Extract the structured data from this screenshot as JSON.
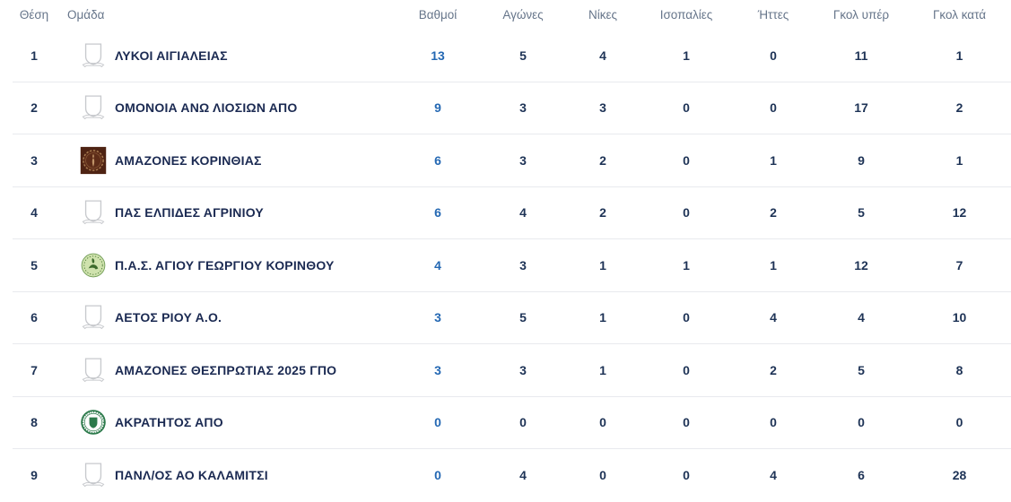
{
  "table": {
    "columns": [
      {
        "key": "position",
        "label": "Θέση"
      },
      {
        "key": "team",
        "label": "Ομάδα"
      },
      {
        "key": "points",
        "label": "Βαθμοί"
      },
      {
        "key": "games",
        "label": "Αγώνες"
      },
      {
        "key": "wins",
        "label": "Νίκες"
      },
      {
        "key": "draws",
        "label": "Ισοπαλίες"
      },
      {
        "key": "losses",
        "label": "Ήττες"
      },
      {
        "key": "goals_for",
        "label": "Γκολ υπέρ"
      },
      {
        "key": "goals_against",
        "label": "Γκολ κατά"
      }
    ],
    "rows": [
      {
        "position": "1",
        "team": "ΛΥΚΟΙ ΑΙΓΙΑΛΕΙΑΣ",
        "logo": "shield-placeholder",
        "points": "13",
        "games": "5",
        "wins": "4",
        "draws": "1",
        "losses": "0",
        "goals_for": "11",
        "goals_against": "1"
      },
      {
        "position": "2",
        "team": "ΟΜΟΝΟΙΑ ΑΝΩ ΛΙΟΣΙΩΝ ΑΠΟ",
        "logo": "shield-placeholder",
        "points": "9",
        "games": "3",
        "wins": "3",
        "draws": "0",
        "losses": "0",
        "goals_for": "17",
        "goals_against": "2"
      },
      {
        "position": "3",
        "team": "ΑΜΑΖΟΝΕΣ ΚΟΡΙΝΘΙΑΣ",
        "logo": "maroon-wreath-crest",
        "points": "6",
        "games": "3",
        "wins": "2",
        "draws": "0",
        "losses": "1",
        "goals_for": "9",
        "goals_against": "1"
      },
      {
        "position": "4",
        "team": "ΠΑΣ ΕΛΠΙΔΕΣ ΑΓΡΙΝΙΟΥ",
        "logo": "shield-placeholder",
        "points": "6",
        "games": "4",
        "wins": "2",
        "draws": "0",
        "losses": "2",
        "goals_for": "5",
        "goals_against": "12"
      },
      {
        "position": "5",
        "team": "Π.Α.Σ. ΑΓΙΟΥ ΓΕΩΡΓΙΟΥ ΚΟΡΙΝΘΟΥ",
        "logo": "pale-green-crest",
        "points": "4",
        "games": "3",
        "wins": "1",
        "draws": "1",
        "losses": "1",
        "goals_for": "12",
        "goals_against": "7"
      },
      {
        "position": "6",
        "team": "ΑΕΤΟΣ ΡΙΟΥ Α.Ο.",
        "logo": "shield-placeholder",
        "points": "3",
        "games": "5",
        "wins": "1",
        "draws": "0",
        "losses": "4",
        "goals_for": "4",
        "goals_against": "10"
      },
      {
        "position": "7",
        "team": "ΑΜΑΖΟΝΕΣ ΘΕΣΠΡΩΤΙΑΣ 2025 ΓΠΟ",
        "logo": "shield-placeholder",
        "points": "3",
        "games": "3",
        "wins": "1",
        "draws": "0",
        "losses": "2",
        "goals_for": "5",
        "goals_against": "8"
      },
      {
        "position": "8",
        "team": "ΑΚΡΑΤΗΤΟΣ ΑΠΟ",
        "logo": "green-ring-crest",
        "points": "0",
        "games": "0",
        "wins": "0",
        "draws": "0",
        "losses": "0",
        "goals_for": "0",
        "goals_against": "0"
      },
      {
        "position": "9",
        "team": "ΠΑΝΛ/ΟΣ ΑΟ ΚΑΛΑΜΙΤΣΙ",
        "logo": "shield-placeholder",
        "points": "0",
        "games": "4",
        "wins": "0",
        "draws": "0",
        "losses": "4",
        "goals_for": "6",
        "goals_against": "28"
      }
    ]
  },
  "colors": {
    "points_accent": "#2468b3",
    "stat_text": "#1e3356",
    "team_text": "#1b2a52",
    "header_text": "#66758a",
    "divider": "#e8eaee"
  }
}
